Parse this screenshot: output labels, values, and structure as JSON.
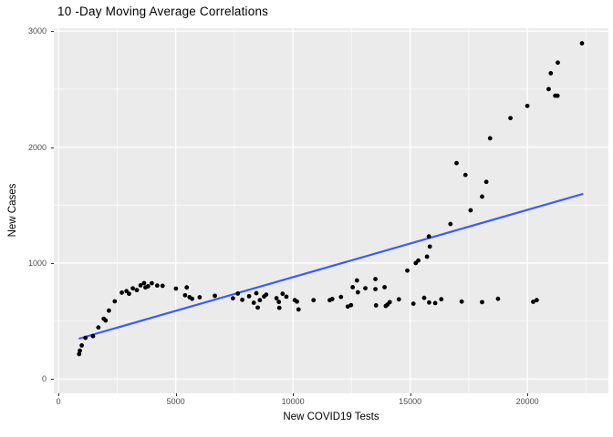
{
  "title": "10 -Day Moving Average Correlations",
  "chart_data": {
    "type": "scatter",
    "title": "10 -Day Moving Average Correlations",
    "xlabel": "New COVID19 Tests",
    "ylabel": "New Cases",
    "xlim": [
      -200,
      23460
    ],
    "ylim": [
      -123,
      3025
    ],
    "x_ticks": [
      0,
      5000,
      10000,
      15000,
      20000
    ],
    "y_ticks": [
      0,
      1000,
      2000,
      3000
    ],
    "x_minor_ticks": [
      2500,
      7500,
      12500,
      17500,
      22500
    ],
    "y_minor_ticks": [
      500,
      1500,
      2500
    ],
    "grid": "major+minor white on grey panel",
    "legend": "none",
    "series_name": "daily points",
    "points": [
      [
        880,
        215
      ],
      [
        910,
        245
      ],
      [
        990,
        290
      ],
      [
        1150,
        355
      ],
      [
        1470,
        370
      ],
      [
        1700,
        445
      ],
      [
        1930,
        520
      ],
      [
        2010,
        505
      ],
      [
        2150,
        590
      ],
      [
        2400,
        670
      ],
      [
        2700,
        745
      ],
      [
        2900,
        758
      ],
      [
        3010,
        735
      ],
      [
        3170,
        782
      ],
      [
        3340,
        767
      ],
      [
        3500,
        808
      ],
      [
        3650,
        827
      ],
      [
        3710,
        790
      ],
      [
        3820,
        800
      ],
      [
        3980,
        826
      ],
      [
        4210,
        806
      ],
      [
        4440,
        804
      ],
      [
        5010,
        780
      ],
      [
        5400,
        722
      ],
      [
        5470,
        790
      ],
      [
        5590,
        706
      ],
      [
        5700,
        692
      ],
      [
        6020,
        705
      ],
      [
        6670,
        718
      ],
      [
        7440,
        696
      ],
      [
        7650,
        737
      ],
      [
        7840,
        683
      ],
      [
        8130,
        714
      ],
      [
        8330,
        658
      ],
      [
        8440,
        740
      ],
      [
        8500,
        616
      ],
      [
        8590,
        680
      ],
      [
        8770,
        712
      ],
      [
        8860,
        728
      ],
      [
        9300,
        697
      ],
      [
        9400,
        665
      ],
      [
        9420,
        614
      ],
      [
        9560,
        735
      ],
      [
        9720,
        710
      ],
      [
        10080,
        680
      ],
      [
        10170,
        668
      ],
      [
        10240,
        600
      ],
      [
        10880,
        680
      ],
      [
        11570,
        680
      ],
      [
        11680,
        690
      ],
      [
        12050,
        708
      ],
      [
        12340,
        625
      ],
      [
        12480,
        637
      ],
      [
        12550,
        792
      ],
      [
        12730,
        850
      ],
      [
        12770,
        748
      ],
      [
        13090,
        783
      ],
      [
        13520,
        862
      ],
      [
        13520,
        775
      ],
      [
        13545,
        635
      ],
      [
        13910,
        792
      ],
      [
        13960,
        630
      ],
      [
        14040,
        643
      ],
      [
        14130,
        663
      ],
      [
        14520,
        687
      ],
      [
        15140,
        650
      ],
      [
        15600,
        700
      ],
      [
        15810,
        660
      ],
      [
        16070,
        655
      ],
      [
        16330,
        688
      ],
      [
        17200,
        668
      ],
      [
        18070,
        663
      ],
      [
        18750,
        692
      ],
      [
        20250,
        666
      ],
      [
        20400,
        680
      ],
      [
        14880,
        935
      ],
      [
        15240,
        1000
      ],
      [
        15350,
        1022
      ],
      [
        15720,
        1055
      ],
      [
        15800,
        1230
      ],
      [
        15840,
        1142
      ],
      [
        16720,
        1337
      ],
      [
        16980,
        1862
      ],
      [
        17360,
        1760
      ],
      [
        17580,
        1455
      ],
      [
        18070,
        1573
      ],
      [
        18250,
        1700
      ],
      [
        18410,
        2076
      ],
      [
        19280,
        2250
      ],
      [
        20000,
        2355
      ],
      [
        20910,
        2500
      ],
      [
        21000,
        2637
      ],
      [
        21190,
        2443
      ],
      [
        21290,
        2443
      ],
      [
        21300,
        2728
      ],
      [
        22330,
        2895
      ]
    ],
    "trend_line": {
      "x1": 900,
      "y1": 350,
      "x2": 22350,
      "y2": 1595
    },
    "colors": {
      "figure_bg": "#FFFFFF",
      "panel_bg": "#EBEBEB",
      "grid": "#FFFFFF",
      "point": "#000000",
      "trend": "#3B5BFD",
      "tick_label": "#4D4D4D",
      "tick_mark": "#333333",
      "axis_label": "#000000",
      "title": "#000000"
    }
  }
}
